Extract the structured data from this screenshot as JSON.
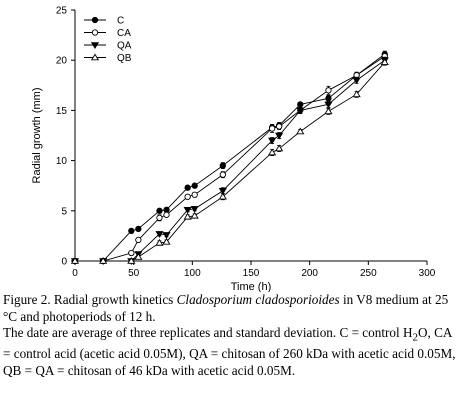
{
  "chart_data": {
    "type": "line",
    "xlabel": "Time (h)",
    "ylabel": "Radial growth (mm)",
    "xlim": [
      0,
      300
    ],
    "ylim": [
      0,
      25
    ],
    "xticks": [
      "0",
      "50",
      "100",
      "150",
      "200",
      "250",
      "300"
    ],
    "yticks": [
      "0",
      "5",
      "10",
      "15",
      "20",
      "25"
    ],
    "grid": false,
    "legend_position": "top-left",
    "series": [
      {
        "name": "C",
        "marker": "filled-circle",
        "x": [
          0,
          24,
          48,
          54,
          72,
          78,
          96,
          102,
          126,
          168,
          174,
          192,
          216,
          240,
          264
        ],
        "y": [
          0,
          0,
          3.0,
          3.2,
          5.0,
          5.1,
          7.3,
          7.5,
          9.5,
          13.3,
          13.5,
          15.6,
          16.2,
          18.5,
          20.6
        ],
        "err": [
          0,
          0,
          0.2,
          0.2,
          0.2,
          0.2,
          0.2,
          0.2,
          0.3,
          0.3,
          0.3,
          0.2,
          0.3,
          0.3,
          0.3
        ]
      },
      {
        "name": "CA",
        "marker": "open-circle",
        "x": [
          0,
          24,
          48,
          54,
          72,
          78,
          96,
          102,
          126,
          168,
          174,
          192,
          216,
          240,
          264
        ],
        "y": [
          0,
          0,
          0.8,
          2.1,
          4.3,
          4.6,
          6.4,
          6.6,
          8.6,
          13.2,
          13.4,
          15.0,
          17.0,
          18.5,
          20.4
        ],
        "err": [
          0,
          0,
          0.2,
          0.2,
          0.3,
          0.2,
          0.2,
          0.2,
          0.3,
          0.4,
          0.3,
          0.3,
          0.4,
          0.3,
          0.3
        ]
      },
      {
        "name": "QA",
        "marker": "filled-triangle",
        "x": [
          0,
          24,
          48,
          54,
          72,
          78,
          96,
          102,
          126,
          168,
          174,
          192,
          216,
          240,
          264
        ],
        "y": [
          0,
          0,
          0,
          0.7,
          2.7,
          2.6,
          5.1,
          5.2,
          7.0,
          12.0,
          12.5,
          15.0,
          15.6,
          18.0,
          20.0
        ],
        "err": [
          0,
          0,
          0,
          0.2,
          0.2,
          0.2,
          0.2,
          0.2,
          0.3,
          0.3,
          0.3,
          0.3,
          0.3,
          0.3,
          0.3
        ]
      },
      {
        "name": "QB",
        "marker": "open-triangle",
        "x": [
          0,
          24,
          48,
          54,
          72,
          78,
          96,
          102,
          126,
          168,
          174,
          192,
          216,
          240,
          264
        ],
        "y": [
          0,
          0,
          0,
          0.4,
          1.8,
          1.9,
          4.4,
          4.5,
          6.4,
          10.8,
          11.2,
          12.9,
          14.9,
          16.6,
          19.8
        ],
        "err": [
          0,
          0,
          0,
          0.2,
          0.2,
          0.2,
          0.2,
          0.2,
          0.3,
          0.3,
          0.3,
          0.2,
          0.3,
          0.3,
          0.3
        ]
      }
    ]
  },
  "caption": {
    "line1_prefix": "Figure 2.  Radial growth kinetics ",
    "line1_species": "Cladosporium cladosporioides",
    "line1_suffix": " in V8 medium at 25 °C and photoperiods of 12 h.",
    "line2_a": "The date are average of three replicates and standard deviation. C = control H",
    "line2_sub": "2",
    "line2_b": "O, CA = control acid (acetic acid 0.05M), QA = chitosan of  260 kDa with acetic acid 0.05M, QB = QA = chitosan of 46 kDa with acetic acid 0.05M."
  }
}
